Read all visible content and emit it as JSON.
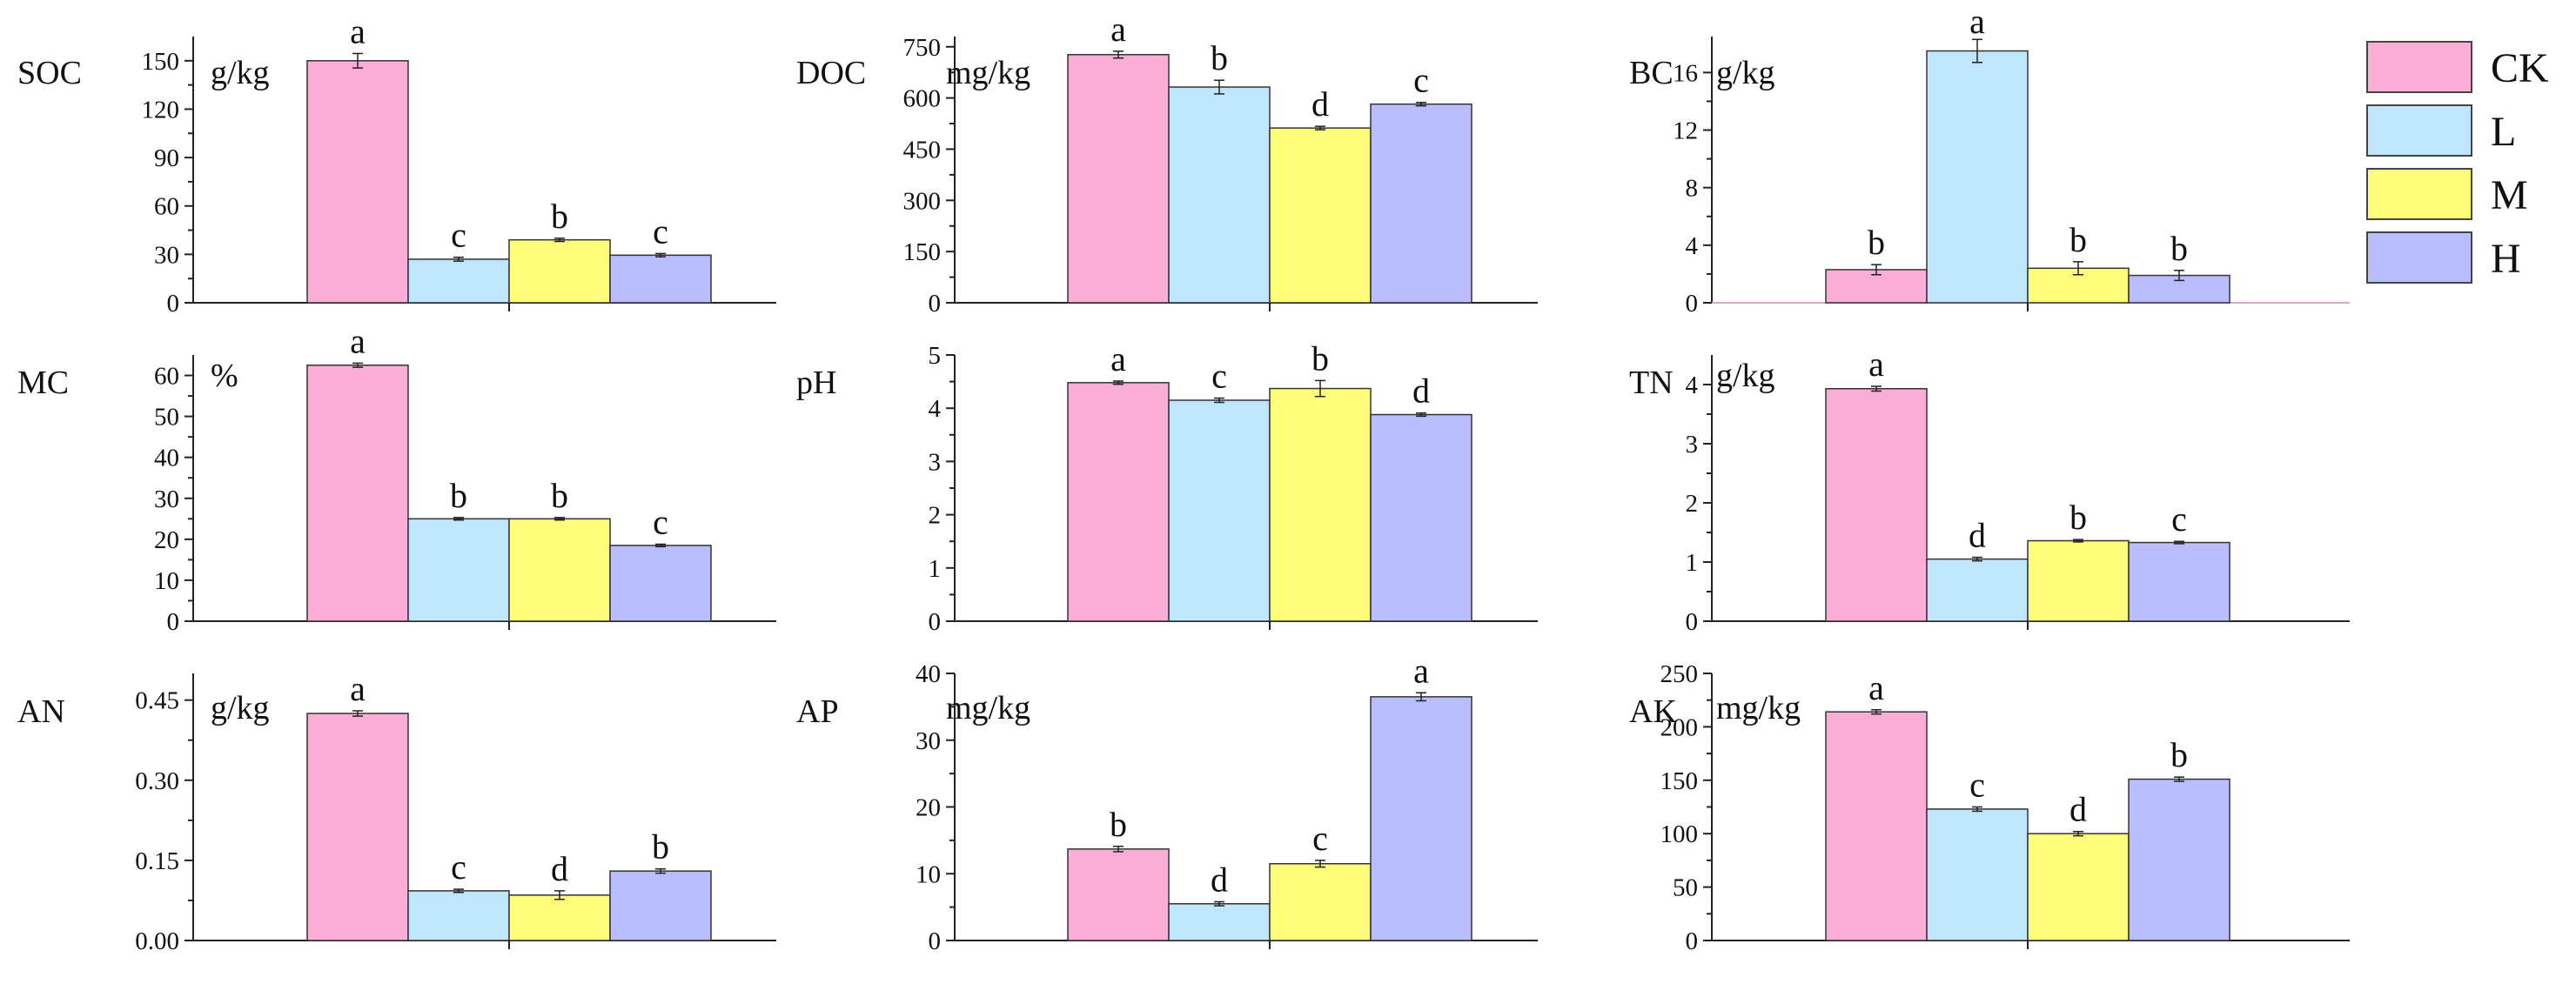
{
  "chart_data": [
    {
      "type": "bar",
      "title": "SOC",
      "ylabel": "g/kg",
      "categories": [
        "CK",
        "L",
        "M",
        "H"
      ],
      "values": [
        150,
        27,
        39,
        29.5
      ],
      "errors": [
        4.5,
        1.2,
        1.0,
        1.0
      ],
      "letters": [
        "a",
        "c",
        "b",
        "c"
      ],
      "ylim": [
        0,
        165
      ],
      "yticks": [
        "0",
        "30",
        "60",
        "90",
        "120",
        "150"
      ]
    },
    {
      "type": "bar",
      "title": "DOC",
      "ylabel": "mg/kg",
      "categories": [
        "CK",
        "L",
        "M",
        "H"
      ],
      "values": [
        727,
        632,
        512,
        582
      ],
      "errors": [
        10,
        20,
        5,
        5
      ],
      "letters": [
        "a",
        "b",
        "d",
        "c"
      ],
      "ylim": [
        0,
        780
      ],
      "yticks": [
        "0",
        "150",
        "300",
        "450",
        "600",
        "750"
      ]
    },
    {
      "type": "bar",
      "title": "BC",
      "ylabel": "g/kg",
      "categories": [
        "CK",
        "L",
        "M",
        "H"
      ],
      "values": [
        2.3,
        17.5,
        2.4,
        1.9
      ],
      "errors": [
        0.35,
        0.8,
        0.45,
        0.35
      ],
      "letters": [
        "b",
        "a",
        "b",
        "b"
      ],
      "ylim": [
        0,
        18.5
      ],
      "yticks": [
        "0",
        "4",
        "8",
        "12",
        "16"
      ]
    },
    {
      "type": "bar",
      "title": "MC",
      "ylabel": "%",
      "categories": [
        "CK",
        "L",
        "M",
        "H"
      ],
      "values": [
        62.5,
        25,
        25,
        18.5
      ],
      "errors": [
        0.5,
        0.3,
        0.3,
        0.3
      ],
      "letters": [
        "a",
        "b",
        "b",
        "c"
      ],
      "ylim": [
        0,
        65
      ],
      "yticks": [
        "0",
        "10",
        "20",
        "30",
        "40",
        "50",
        "60"
      ]
    },
    {
      "type": "bar",
      "title": "pH",
      "ylabel": "",
      "categories": [
        "CK",
        "L",
        "M",
        "H"
      ],
      "values": [
        4.48,
        4.15,
        4.37,
        3.88
      ],
      "errors": [
        0.03,
        0.04,
        0.15,
        0.03
      ],
      "letters": [
        "a",
        "c",
        "b",
        "d"
      ],
      "ylim": [
        0,
        5
      ],
      "yticks": [
        "0",
        "1",
        "2",
        "3",
        "4",
        "5"
      ]
    },
    {
      "type": "bar",
      "title": "TN",
      "ylabel": "g/kg",
      "categories": [
        "CK",
        "L",
        "M",
        "H"
      ],
      "values": [
        3.93,
        1.05,
        1.36,
        1.33
      ],
      "errors": [
        0.04,
        0.03,
        0.02,
        0.02
      ],
      "letters": [
        "a",
        "d",
        "b",
        "c"
      ],
      "ylim": [
        0,
        4.5
      ],
      "yticks": [
        "0",
        "1",
        "2",
        "3",
        "4"
      ]
    },
    {
      "type": "bar",
      "title": "AN",
      "ylabel": "g/kg",
      "categories": [
        "CK",
        "L",
        "M",
        "H"
      ],
      "values": [
        0.425,
        0.093,
        0.085,
        0.13
      ],
      "errors": [
        0.005,
        0.003,
        0.008,
        0.004
      ],
      "letters": [
        "a",
        "c",
        "d",
        "b"
      ],
      "ylim": [
        0,
        0.5
      ],
      "yticks": [
        "0.00",
        "0.15",
        "0.30",
        "0.45"
      ]
    },
    {
      "type": "bar",
      "title": "AP",
      "ylabel": "mg/kg",
      "categories": [
        "CK",
        "L",
        "M",
        "H"
      ],
      "values": [
        13.7,
        5.5,
        11.5,
        36.5
      ],
      "errors": [
        0.4,
        0.3,
        0.5,
        0.6
      ],
      "letters": [
        "b",
        "d",
        "c",
        "a"
      ],
      "ylim": [
        0,
        40
      ],
      "yticks": [
        "0",
        "10",
        "20",
        "30",
        "40"
      ]
    },
    {
      "type": "bar",
      "title": "AK",
      "ylabel": "mg/kg",
      "categories": [
        "CK",
        "L",
        "M",
        "H"
      ],
      "values": [
        214,
        123,
        100,
        151
      ],
      "errors": [
        2,
        2,
        2,
        2
      ],
      "letters": [
        "a",
        "c",
        "d",
        "b"
      ],
      "ylim": [
        0,
        250
      ],
      "yticks": [
        "0",
        "50",
        "100",
        "150",
        "200",
        "250"
      ]
    }
  ],
  "legend": [
    {
      "label": "CK",
      "color": "#fcaed6"
    },
    {
      "label": "L",
      "color": "#bfe6fd"
    },
    {
      "label": "M",
      "color": "#fefe7a"
    },
    {
      "label": "H",
      "color": "#b9bdfe"
    }
  ]
}
